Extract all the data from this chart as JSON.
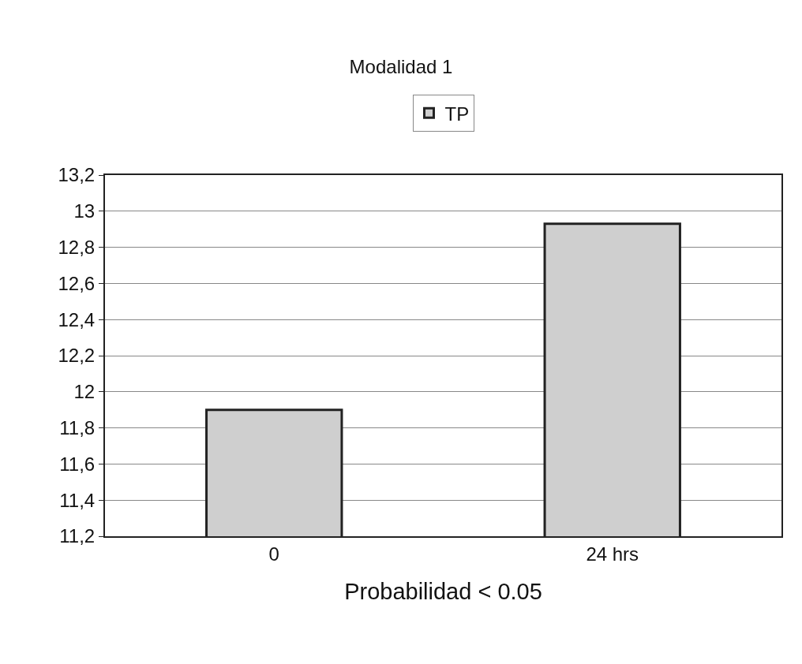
{
  "chart_data": {
    "type": "bar",
    "title": "Modalidad 1",
    "xlabel": "Probabilidad < 0.05",
    "categories": [
      "0",
      "24 hrs"
    ],
    "series": [
      {
        "name": "TP",
        "color": "#cfcfcf",
        "values": [
          11.9,
          12.93
        ]
      }
    ],
    "ylim": [
      11.2,
      13.2
    ],
    "yticks": [
      {
        "value": 11.2,
        "label": "11,2"
      },
      {
        "value": 11.4,
        "label": "11,4"
      },
      {
        "value": 11.6,
        "label": "11,6"
      },
      {
        "value": 11.8,
        "label": "11,8"
      },
      12,
      {
        "value": 12.2,
        "label": "12,2"
      },
      {
        "value": 12.4,
        "label": "12,4"
      },
      {
        "value": 12.6,
        "label": "12,6"
      },
      {
        "value": 12.8,
        "label": "12,8"
      },
      13,
      {
        "value": 13.2,
        "label": "13,2"
      }
    ],
    "grid": "y",
    "legend": "top"
  }
}
